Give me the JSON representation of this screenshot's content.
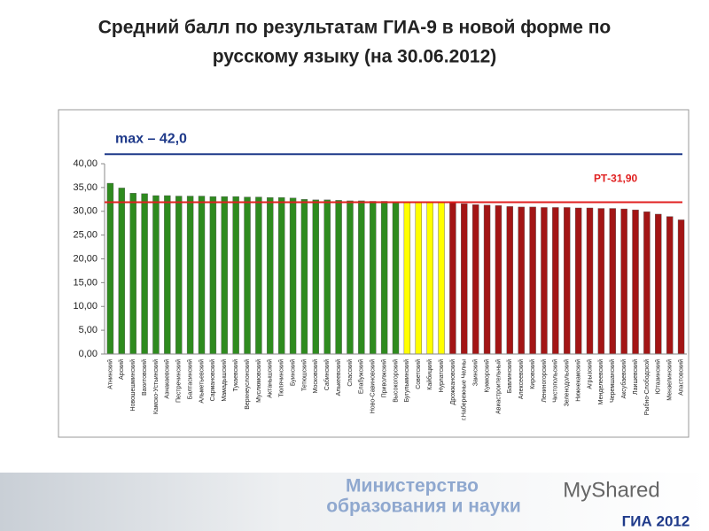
{
  "chart_data": {
    "type": "bar",
    "title": [
      "Средний балл по результатам ГИА-9  в новой форме по",
      "русскому языку (на 30.06.2012)"
    ],
    "categories": [
      "Атнинский",
      "Арский",
      "Новошешминский",
      "Вахитовский",
      "Камско-Устьинский",
      "Азнакаевский",
      "Пестречинский",
      "Балтасинский",
      "Альметьевский",
      "Сармановский",
      "Мамадышский",
      "Тукаевский",
      "Верхнеуслонский",
      "Муслюмовский",
      "Актанышский",
      "Тюлячинский",
      "Буинский",
      "Тетюшский",
      "Московский",
      "Сабинский",
      "Алькеевский",
      "Спасский",
      "Елабужский",
      "Ново-Савиновский",
      "Приволжский",
      "Высокогорский",
      "Бугульминский",
      "Советский",
      "Кайбицкий",
      "Нурлатский",
      "Дрожжановский",
      "г.Набережные Челны",
      "Заинский",
      "Кукморский",
      "Авиастроительный",
      "Бавлинский",
      "Алексеевский",
      "Кировский",
      "Лениногорский",
      "Чистопольский",
      "Зеленодольский",
      "Нижнекамский",
      "Агрызский",
      "Менделеевский",
      "Черемшанский",
      "Аксубаевский",
      "Лаишевский",
      "Рыбно-Слободской",
      "Ютазинский",
      "Мензелинский",
      "Апастовский"
    ],
    "values": [
      35.9,
      34.9,
      33.8,
      33.7,
      33.3,
      33.3,
      33.2,
      33.2,
      33.2,
      33.1,
      33.1,
      33.1,
      33.0,
      33.0,
      32.9,
      32.9,
      32.8,
      32.5,
      32.4,
      32.4,
      32.3,
      32.2,
      32.2,
      32.1,
      32.1,
      32.0,
      31.9,
      31.9,
      31.9,
      31.9,
      31.8,
      31.6,
      31.4,
      31.3,
      31.2,
      31.0,
      30.9,
      30.9,
      30.8,
      30.8,
      30.8,
      30.7,
      30.7,
      30.6,
      30.6,
      30.5,
      30.3,
      29.9,
      29.4,
      28.9,
      28.2
    ],
    "colors": [
      "#2e8b1e",
      "#2e8b1e",
      "#2e8b1e",
      "#2e8b1e",
      "#2e8b1e",
      "#2e8b1e",
      "#2e8b1e",
      "#2e8b1e",
      "#2e8b1e",
      "#2e8b1e",
      "#2e8b1e",
      "#2e8b1e",
      "#2e8b1e",
      "#2e8b1e",
      "#2e8b1e",
      "#2e8b1e",
      "#2e8b1e",
      "#2e8b1e",
      "#2e8b1e",
      "#2e8b1e",
      "#2e8b1e",
      "#2e8b1e",
      "#2e8b1e",
      "#2e8b1e",
      "#2e8b1e",
      "#2e8b1e",
      "#ffff00",
      "#ffff00",
      "#ffff00",
      "#ffff00",
      "#a31515",
      "#a31515",
      "#a31515",
      "#a31515",
      "#a31515",
      "#a31515",
      "#a31515",
      "#a31515",
      "#a31515",
      "#a31515",
      "#a31515",
      "#a31515",
      "#a31515",
      "#a31515",
      "#a31515",
      "#a31515",
      "#a31515",
      "#a31515",
      "#a31515",
      "#a31515",
      "#a31515"
    ],
    "ylim": [
      0,
      40
    ],
    "yticks": [
      {
        "value": 0,
        "label": "0,00"
      },
      {
        "value": 5,
        "label": "5,00"
      },
      {
        "value": 10,
        "label": "10,00"
      },
      {
        "value": 15,
        "label": "15,00"
      },
      {
        "value": 20,
        "label": "20,00"
      },
      {
        "value": 25,
        "label": "25,00"
      },
      {
        "value": 30,
        "label": "30,00"
      },
      {
        "value": 35,
        "label": "35,00"
      },
      {
        "value": 40,
        "label": "40,00"
      }
    ],
    "reference_lines": [
      {
        "value": 42,
        "label": "max – 42,0",
        "color": "#1f3a8a"
      },
      {
        "value": 31.9,
        "label": "РТ-31,90",
        "color": "#e02020"
      }
    ]
  },
  "footer": {
    "ministry": [
      "Министерство",
      "образования и науки"
    ],
    "watermark": "MyShared",
    "logo": "ГИА 2012"
  }
}
